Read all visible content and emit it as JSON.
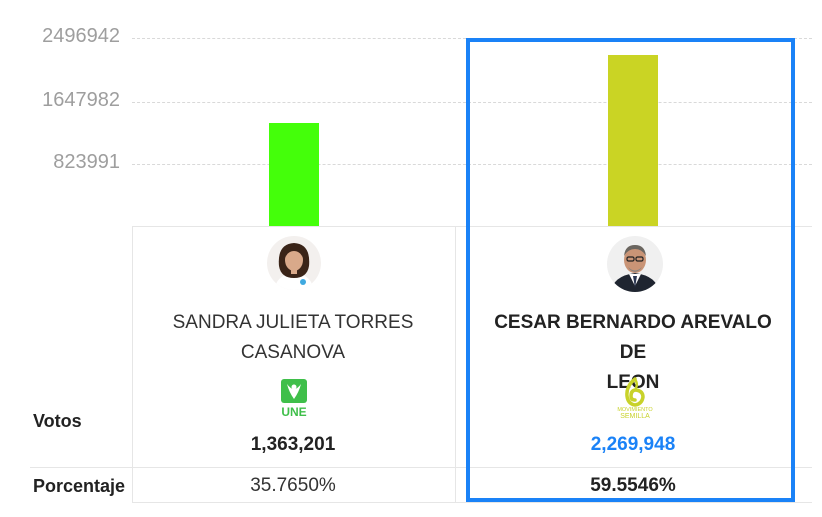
{
  "chart_data": {
    "type": "bar",
    "categories": [
      "SANDRA JULIETA TORRES CASANOVA",
      "CESAR BERNARDO AREVALO DE LEON"
    ],
    "values": [
      1363201,
      2269948
    ],
    "yticks": [
      "2496942",
      "1647982",
      "823991"
    ],
    "ytick_values": [
      2496942,
      1647982,
      823991
    ],
    "ylim": [
      0,
      2496942
    ],
    "grid": true,
    "bar_colors": [
      "#44ff0a",
      "#cad424"
    ],
    "highlight_color": "#1a82f7"
  },
  "candidates": [
    {
      "name_line1": "SANDRA JULIETA TORRES",
      "name_line2": "CASANOVA",
      "party_text": "UNE",
      "party_color": "#3fbf4a",
      "votes": "1,363,201",
      "votes_color": "#222222",
      "percentage": "35.7650%",
      "winner": false
    },
    {
      "name_line1": "CESAR BERNARDO AREVALO DE",
      "name_line2": "LEON",
      "party_text_line1": "MOVIMIENTO",
      "party_text_line2": "SEMILLA",
      "party_color": "#c8d22a",
      "votes": "2,269,948",
      "votes_color": "#1a82f7",
      "percentage": "59.5546%",
      "winner": true
    }
  ],
  "row_labels": {
    "votes": "Votos",
    "percentage": "Porcentaje"
  }
}
